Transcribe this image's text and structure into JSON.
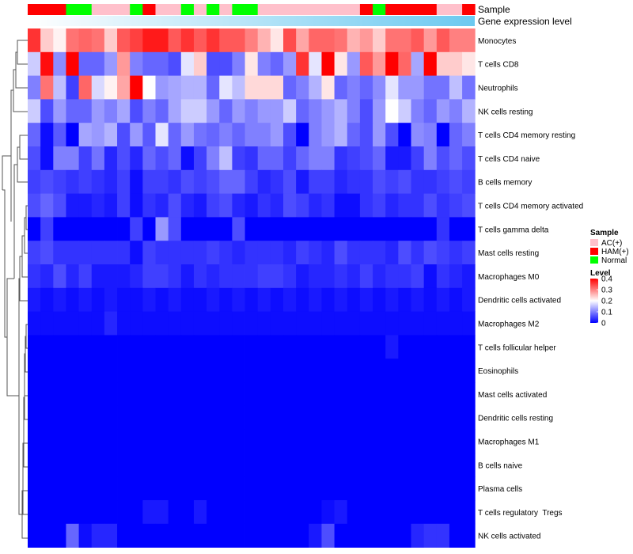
{
  "chart_data": {
    "type": "heatmap",
    "annotation_labels": {
      "sample": "Sample",
      "expression": "Gene expression level"
    },
    "sample_colors": {
      "AC(+)": "#ffc0cb",
      "HAM(+)": "#ff0000",
      "Normal": "#00ff00"
    },
    "samples": [
      "HAM(+)",
      "HAM(+)",
      "HAM(+)",
      "Normal",
      "Normal",
      "AC(+)",
      "AC(+)",
      "AC(+)",
      "Normal",
      "HAM(+)",
      "AC(+)",
      "AC(+)",
      "Normal",
      "AC(+)",
      "Normal",
      "AC(+)",
      "Normal",
      "Normal",
      "AC(+)",
      "AC(+)",
      "AC(+)",
      "AC(+)",
      "AC(+)",
      "AC(+)",
      "AC(+)",
      "AC(+)",
      "HAM(+)",
      "Normal",
      "HAM(+)",
      "HAM(+)",
      "HAM(+)",
      "HAM(+)",
      "AC(+)",
      "AC(+)",
      "HAM(+)"
    ],
    "expression_gradient": [
      "#ffffff",
      "#6cc9f0"
    ],
    "rows": [
      "Monocytes",
      "T cells CD8",
      "Neutrophils",
      "NK cells resting",
      "T cells CD4 memory resting",
      "T cells CD4 naive",
      "B cells memory",
      "T cells CD4 memory activated",
      "T cells gamma delta",
      "Mast cells resting",
      "Macrophages M0",
      "Dendritic cells activated",
      "Macrophages M2",
      "T cells follicular helper",
      "Eosinophils",
      "Mast cells activated",
      "Dendritic cells resting",
      "Macrophages M1",
      "B cells naive",
      "Plasma cells",
      "T cells regulatory  Tregs",
      "NK cells activated"
    ],
    "values": [
      [
        0.36,
        0.24,
        0.21,
        0.31,
        0.32,
        0.31,
        0.24,
        0.33,
        0.35,
        0.38,
        0.38,
        0.33,
        0.36,
        0.33,
        0.36,
        0.33,
        0.33,
        0.3,
        0.26,
        0.22,
        0.34,
        0.27,
        0.32,
        0.32,
        0.31,
        0.26,
        0.28,
        0.24,
        0.31,
        0.31,
        0.33,
        0.28,
        0.33,
        0.3,
        0.3
      ],
      [
        0.16,
        0.39,
        0.11,
        0.4,
        0.08,
        0.08,
        0.12,
        0.28,
        0.1,
        0.08,
        0.08,
        0.06,
        0.18,
        0.24,
        0.06,
        0.06,
        0.1,
        0.22,
        0.1,
        0.08,
        0.12,
        0.36,
        0.18,
        0.4,
        0.22,
        0.12,
        0.33,
        0.28,
        0.4,
        0.32,
        0.13,
        0.4,
        0.24,
        0.24,
        0.22
      ],
      [
        0.1,
        0.31,
        0.15,
        0.05,
        0.32,
        0.17,
        0.21,
        0.27,
        0.4,
        0.2,
        0.12,
        0.13,
        0.14,
        0.14,
        0.08,
        0.18,
        0.15,
        0.23,
        0.23,
        0.23,
        0.08,
        0.1,
        0.14,
        0.22,
        0.08,
        0.1,
        0.08,
        0.11,
        0.18,
        0.12,
        0.12,
        0.09,
        0.09,
        0.15,
        0.09
      ],
      [
        0.16,
        0.06,
        0.12,
        0.08,
        0.08,
        0.12,
        0.1,
        0.13,
        0.06,
        0.1,
        0.08,
        0.13,
        0.16,
        0.16,
        0.12,
        0.08,
        0.12,
        0.1,
        0.12,
        0.12,
        0.16,
        0.08,
        0.1,
        0.12,
        0.14,
        0.1,
        0.06,
        0.12,
        0.2,
        0.16,
        0.1,
        0.08,
        0.12,
        0.1,
        0.14
      ],
      [
        0.08,
        0.01,
        0.07,
        0.0,
        0.13,
        0.12,
        0.14,
        0.06,
        0.12,
        0.07,
        0.18,
        0.08,
        0.12,
        0.09,
        0.08,
        0.1,
        0.08,
        0.1,
        0.1,
        0.12,
        0.06,
        0.0,
        0.1,
        0.12,
        0.14,
        0.08,
        0.06,
        0.12,
        0.06,
        0.0,
        0.11,
        0.1,
        0.0,
        0.08,
        0.1
      ],
      [
        0.06,
        0.01,
        0.1,
        0.1,
        0.05,
        0.09,
        0.03,
        0.06,
        0.03,
        0.08,
        0.06,
        0.08,
        0.01,
        0.05,
        0.1,
        0.15,
        0.05,
        0.04,
        0.08,
        0.08,
        0.05,
        0.08,
        0.1,
        0.1,
        0.04,
        0.05,
        0.06,
        0.08,
        0.02,
        0.02,
        0.05,
        0.1,
        0.06,
        0.08,
        0.06
      ],
      [
        0.05,
        0.06,
        0.05,
        0.04,
        0.05,
        0.04,
        0.03,
        0.05,
        0.01,
        0.05,
        0.05,
        0.04,
        0.06,
        0.05,
        0.06,
        0.08,
        0.08,
        0.05,
        0.03,
        0.04,
        0.06,
        0.02,
        0.05,
        0.05,
        0.03,
        0.04,
        0.04,
        0.06,
        0.05,
        0.06,
        0.04,
        0.04,
        0.05,
        0.06,
        0.05
      ],
      [
        0.06,
        0.08,
        0.06,
        0.02,
        0.02,
        0.03,
        0.02,
        0.05,
        0.01,
        0.04,
        0.03,
        0.06,
        0.03,
        0.02,
        0.05,
        0.06,
        0.03,
        0.02,
        0.04,
        0.03,
        0.06,
        0.05,
        0.03,
        0.04,
        0.01,
        0.01,
        0.04,
        0.05,
        0.03,
        0.04,
        0.04,
        0.06,
        0.04,
        0.05,
        0.06
      ],
      [
        0.0,
        0.05,
        0.0,
        0.0,
        0.0,
        0.0,
        0.0,
        0.0,
        0.05,
        0.0,
        0.12,
        0.06,
        0.0,
        0.0,
        0.0,
        0.0,
        0.06,
        0.0,
        0.0,
        0.0,
        0.0,
        0.0,
        0.0,
        0.0,
        0.0,
        0.0,
        0.0,
        0.0,
        0.0,
        0.0,
        0.0,
        0.0,
        0.04,
        0.0,
        0.0
      ],
      [
        0.05,
        0.06,
        0.04,
        0.04,
        0.04,
        0.04,
        0.04,
        0.04,
        0.01,
        0.05,
        0.04,
        0.04,
        0.04,
        0.04,
        0.05,
        0.04,
        0.03,
        0.04,
        0.04,
        0.04,
        0.03,
        0.05,
        0.04,
        0.03,
        0.06,
        0.04,
        0.04,
        0.04,
        0.03,
        0.06,
        0.04,
        0.06,
        0.05,
        0.04,
        0.05
      ],
      [
        0.04,
        0.03,
        0.06,
        0.03,
        0.05,
        0.02,
        0.02,
        0.02,
        0.03,
        0.05,
        0.05,
        0.04,
        0.02,
        0.04,
        0.03,
        0.04,
        0.04,
        0.04,
        0.05,
        0.05,
        0.04,
        0.02,
        0.03,
        0.03,
        0.04,
        0.03,
        0.05,
        0.03,
        0.04,
        0.04,
        0.05,
        0.01,
        0.04,
        0.03,
        0.02
      ],
      [
        0.02,
        0.01,
        0.02,
        0.01,
        0.02,
        0.01,
        0.02,
        0.01,
        0.01,
        0.02,
        0.01,
        0.02,
        0.01,
        0.01,
        0.02,
        0.01,
        0.02,
        0.01,
        0.02,
        0.01,
        0.02,
        0.01,
        0.02,
        0.01,
        0.02,
        0.01,
        0.02,
        0.01,
        0.02,
        0.01,
        0.02,
        0.01,
        0.02,
        0.01,
        0.02
      ],
      [
        0.01,
        0.01,
        0.01,
        0.01,
        0.01,
        0.01,
        0.03,
        0.01,
        0.01,
        0.01,
        0.01,
        0.01,
        0.01,
        0.01,
        0.01,
        0.01,
        0.01,
        0.01,
        0.01,
        0.01,
        0.01,
        0.01,
        0.01,
        0.01,
        0.01,
        0.01,
        0.01,
        0.01,
        0.01,
        0.01,
        0.01,
        0.01,
        0.01,
        0.01,
        0.01
      ],
      [
        0.0,
        0.0,
        0.0,
        0.0,
        0.0,
        0.0,
        0.0,
        0.0,
        0.0,
        0.0,
        0.0,
        0.0,
        0.0,
        0.0,
        0.0,
        0.0,
        0.0,
        0.0,
        0.0,
        0.0,
        0.0,
        0.0,
        0.0,
        0.0,
        0.0,
        0.0,
        0.0,
        0.0,
        0.02,
        0.0,
        0.0,
        0.0,
        0.0,
        0.0,
        0.0
      ],
      [
        0.0,
        0.0,
        0.0,
        0.0,
        0.0,
        0.0,
        0.0,
        0.0,
        0.0,
        0.0,
        0.0,
        0.0,
        0.0,
        0.0,
        0.0,
        0.0,
        0.0,
        0.0,
        0.0,
        0.0,
        0.0,
        0.0,
        0.0,
        0.0,
        0.0,
        0.0,
        0.0,
        0.0,
        0.0,
        0.0,
        0.0,
        0.0,
        0.0,
        0.0,
        0.0
      ],
      [
        0.0,
        0.0,
        0.0,
        0.0,
        0.0,
        0.0,
        0.0,
        0.0,
        0.0,
        0.0,
        0.0,
        0.0,
        0.0,
        0.0,
        0.0,
        0.0,
        0.0,
        0.0,
        0.0,
        0.0,
        0.0,
        0.0,
        0.0,
        0.0,
        0.0,
        0.0,
        0.0,
        0.0,
        0.0,
        0.0,
        0.0,
        0.0,
        0.0,
        0.0,
        0.0
      ],
      [
        0.0,
        0.0,
        0.0,
        0.0,
        0.0,
        0.0,
        0.0,
        0.0,
        0.0,
        0.0,
        0.0,
        0.0,
        0.0,
        0.0,
        0.0,
        0.0,
        0.0,
        0.0,
        0.0,
        0.0,
        0.0,
        0.0,
        0.0,
        0.0,
        0.0,
        0.0,
        0.0,
        0.0,
        0.0,
        0.0,
        0.0,
        0.0,
        0.0,
        0.0,
        0.0
      ],
      [
        0.0,
        0.0,
        0.0,
        0.0,
        0.0,
        0.0,
        0.0,
        0.0,
        0.0,
        0.0,
        0.0,
        0.0,
        0.0,
        0.0,
        0.0,
        0.0,
        0.0,
        0.0,
        0.0,
        0.0,
        0.0,
        0.0,
        0.0,
        0.0,
        0.0,
        0.0,
        0.0,
        0.0,
        0.0,
        0.0,
        0.0,
        0.0,
        0.0,
        0.0,
        0.0
      ],
      [
        0.0,
        0.0,
        0.0,
        0.0,
        0.0,
        0.0,
        0.0,
        0.0,
        0.0,
        0.0,
        0.0,
        0.0,
        0.0,
        0.0,
        0.0,
        0.0,
        0.0,
        0.0,
        0.0,
        0.0,
        0.0,
        0.0,
        0.0,
        0.0,
        0.0,
        0.0,
        0.0,
        0.0,
        0.0,
        0.0,
        0.0,
        0.0,
        0.0,
        0.0,
        0.0
      ],
      [
        0.0,
        0.0,
        0.0,
        0.0,
        0.0,
        0.0,
        0.0,
        0.0,
        0.0,
        0.0,
        0.0,
        0.0,
        0.0,
        0.0,
        0.0,
        0.0,
        0.0,
        0.0,
        0.0,
        0.0,
        0.0,
        0.0,
        0.0,
        0.0,
        0.0,
        0.0,
        0.0,
        0.0,
        0.0,
        0.0,
        0.0,
        0.0,
        0.0,
        0.0,
        0.0
      ],
      [
        0.0,
        0.0,
        0.0,
        0.0,
        0.0,
        0.0,
        0.0,
        0.0,
        0.0,
        0.02,
        0.02,
        0.0,
        0.0,
        0.02,
        0.0,
        0.0,
        0.0,
        0.0,
        0.0,
        0.0,
        0.0,
        0.0,
        0.0,
        0.01,
        0.02,
        0.0,
        0.0,
        0.0,
        0.0,
        0.0,
        0.0,
        0.0,
        0.0,
        0.0,
        0.0
      ],
      [
        0.0,
        0.0,
        0.0,
        0.08,
        0.01,
        0.03,
        0.03,
        0.0,
        0.0,
        0.0,
        0.0,
        0.0,
        0.0,
        0.0,
        0.0,
        0.0,
        0.0,
        0.0,
        0.0,
        0.0,
        0.0,
        0.0,
        0.02,
        0.06,
        0.0,
        0.0,
        0.0,
        0.0,
        0.0,
        0.0,
        0.03,
        0.04,
        0.04,
        0.0,
        0.0
      ]
    ],
    "scale": {
      "min": 0,
      "mid": 0.2,
      "max": 0.4,
      "low_color": "#0000ff",
      "mid_color": "#ffffff",
      "high_color": "#ff0000"
    },
    "legend": {
      "sample_title": "Sample",
      "level_title": "Level",
      "categories": [
        "AC(+)",
        "HAM(+)",
        "Normal"
      ],
      "ticks": [
        "0.4",
        "0.3",
        "0.2",
        "0.1",
        "0"
      ],
      "tick_values": [
        0.4,
        0.3,
        0.2,
        0.1,
        0
      ]
    },
    "dendrogram": "row clustering (hierarchical) drawn on left"
  }
}
